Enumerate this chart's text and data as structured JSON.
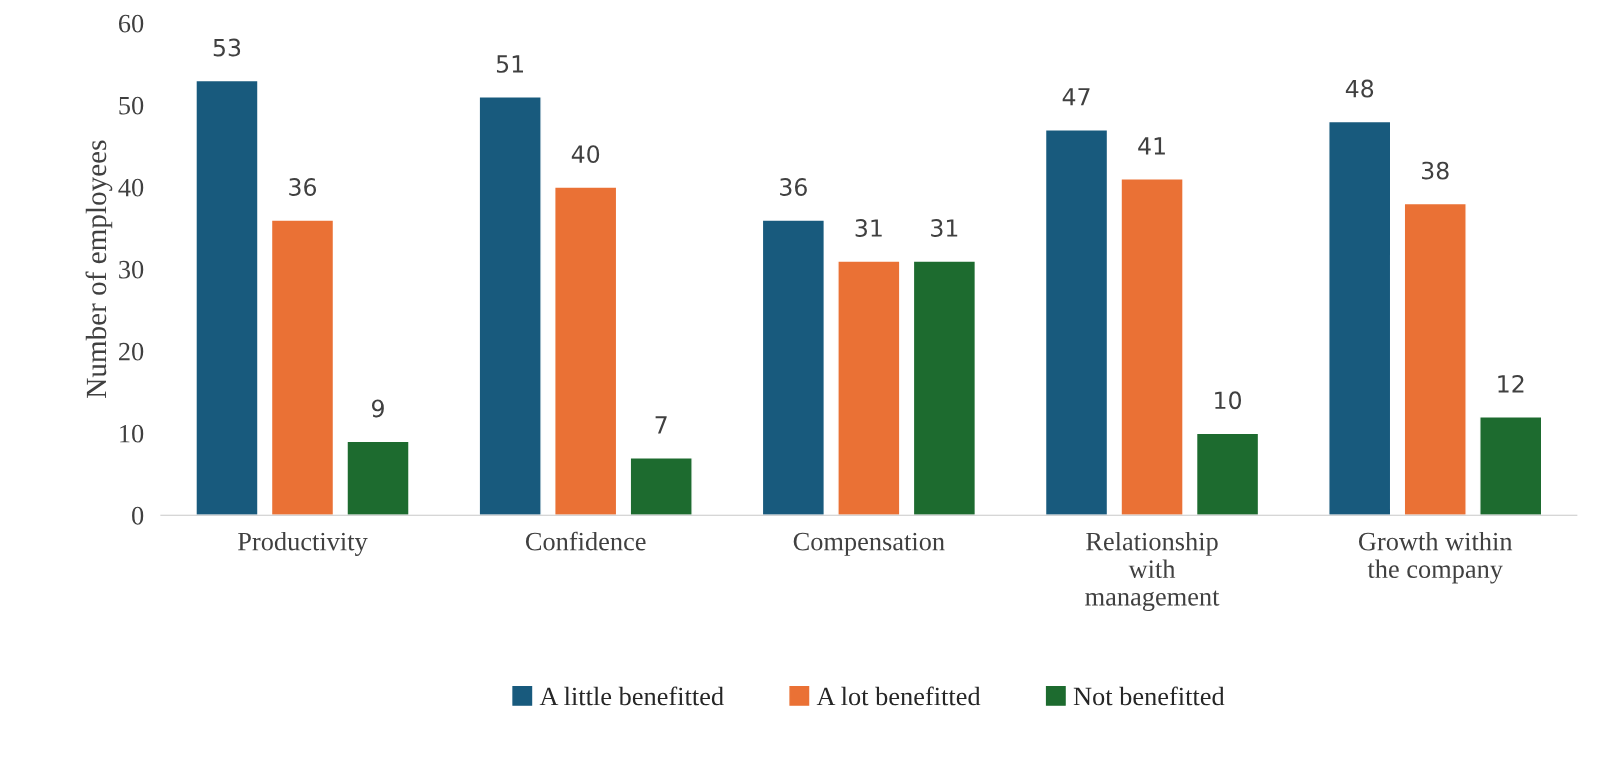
{
  "chart_data": {
    "type": "bar",
    "ylabel": "Number of employees",
    "categories": [
      "Productivity",
      "Confidence",
      "Compensation",
      "Relationship\nwith\nmanagement",
      "Growth within\nthe company"
    ],
    "series": [
      {
        "name": "A little benefitted",
        "color": "#185a7d",
        "values": [
          53,
          51,
          36,
          47,
          48
        ]
      },
      {
        "name": "A lot benefitted",
        "color": "#ea7135",
        "values": [
          36,
          40,
          31,
          41,
          38
        ]
      },
      {
        "name": "Not benefitted",
        "color": "#1d6b2f",
        "values": [
          9,
          7,
          31,
          10,
          12
        ]
      }
    ],
    "ylim": [
      0,
      60
    ],
    "yticks": [
      0,
      10,
      20,
      30,
      40,
      50,
      60
    ],
    "grid": false,
    "legend": "bottom",
    "data_labels": true
  }
}
